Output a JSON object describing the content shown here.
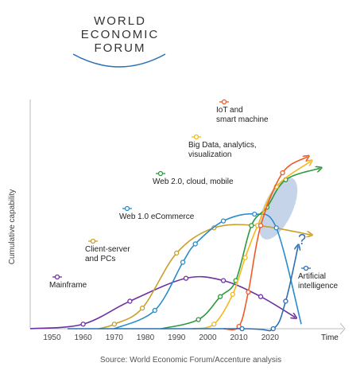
{
  "logo": [
    "WORLD",
    "ECONOMIC",
    "FORUM"
  ],
  "chart_data": {
    "type": "line",
    "ylabel": "Cumulative capability",
    "xlabel": "Time",
    "source": "Source: World Economic Forum/Accenture analysis",
    "annotation": "?",
    "xlim": [
      1943,
      2043
    ],
    "ylim": [
      0,
      100
    ],
    "xticks": [
      1950,
      1960,
      1970,
      1980,
      1990,
      2000,
      2010,
      2020
    ],
    "series": [
      {
        "name": "Mainframe",
        "color": "#7030a0",
        "arrow": true,
        "x": [
          1943,
          1960,
          1975,
          1993,
          2005,
          2017,
          2028
        ],
        "values": [
          0,
          2,
          12,
          22,
          21,
          14,
          5
        ]
      },
      {
        "name": "Client-server\nand PCs",
        "color": "#c9a02b",
        "arrow": true,
        "x": [
          1965,
          1970,
          1979,
          1990,
          2002,
          2016,
          2033
        ],
        "values": [
          0,
          2,
          9,
          33,
          44,
          45,
          41
        ]
      },
      {
        "name": "Web 1.0 eCommerce",
        "color": "#2a8ccc",
        "arrow": false,
        "x": [
          1970,
          1983,
          1992,
          1996,
          2005,
          2015,
          2022,
          2030
        ],
        "values": [
          0,
          8,
          29,
          37,
          47,
          50,
          44,
          2
        ]
      },
      {
        "name": "Web 2.0, cloud, mobile",
        "color": "#2a9a3c",
        "arrow": true,
        "x": [
          1985,
          1997,
          2004,
          2009,
          2014,
          2019,
          2025,
          2036
        ],
        "values": [
          0,
          4,
          14,
          21,
          45,
          53,
          65,
          70
        ]
      },
      {
        "name": "Big Data, analytics,\nvisualization",
        "color": "#f5b81c",
        "arrow": true,
        "x": [
          1995,
          2002,
          2008,
          2012,
          2016,
          2022,
          2033
        ],
        "values": [
          0,
          2,
          15,
          31,
          45,
          62,
          73
        ]
      },
      {
        "name": "IoT and\nsmart machine",
        "color": "#f05a28",
        "arrow": true,
        "x": [
          2005,
          2010,
          2013,
          2017,
          2024,
          2032
        ],
        "values": [
          0,
          1,
          16,
          45,
          68,
          75
        ]
      },
      {
        "name": "Artificial\nintelligence",
        "color": "#2a6eb4",
        "arrow": true,
        "x": [
          1955,
          2011,
          2021,
          2025,
          2029
        ],
        "values": [
          0,
          0,
          0,
          12,
          36
        ]
      }
    ]
  }
}
